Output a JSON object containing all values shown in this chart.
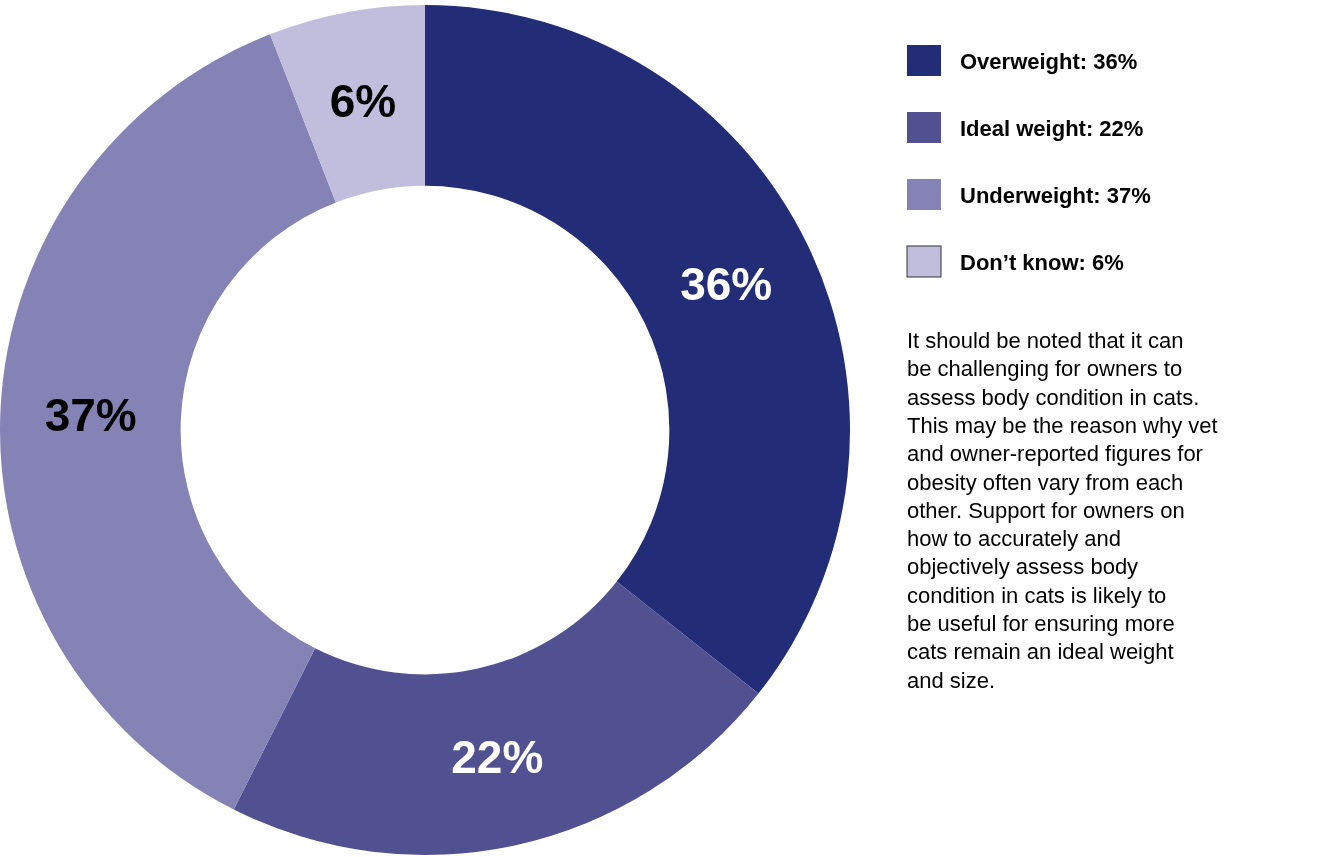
{
  "chart_data": {
    "type": "donut",
    "categories": [
      "Overweight: 36%",
      "Ideal weight: 22%",
      "Underweight: 37%",
      "Don’t know: 6%"
    ],
    "values": [
      36,
      22,
      37,
      6
    ],
    "colors": [
      "#232c77",
      "#515192",
      "#8583b5",
      "#c1bedd"
    ],
    "value_labels": [
      "36%",
      "22%",
      "37%",
      "6%"
    ],
    "legend": "right",
    "annotations": [
      "It should be noted that it can be challenging for owners to assess body condition in cats. This may be the reason why vet and owner-reported figures for obesity often vary from each other. Support for owners on how to accurately and objectively assess body condition in cats is likely to be useful for ensuring more cats remain an ideal weight and size."
    ]
  }
}
